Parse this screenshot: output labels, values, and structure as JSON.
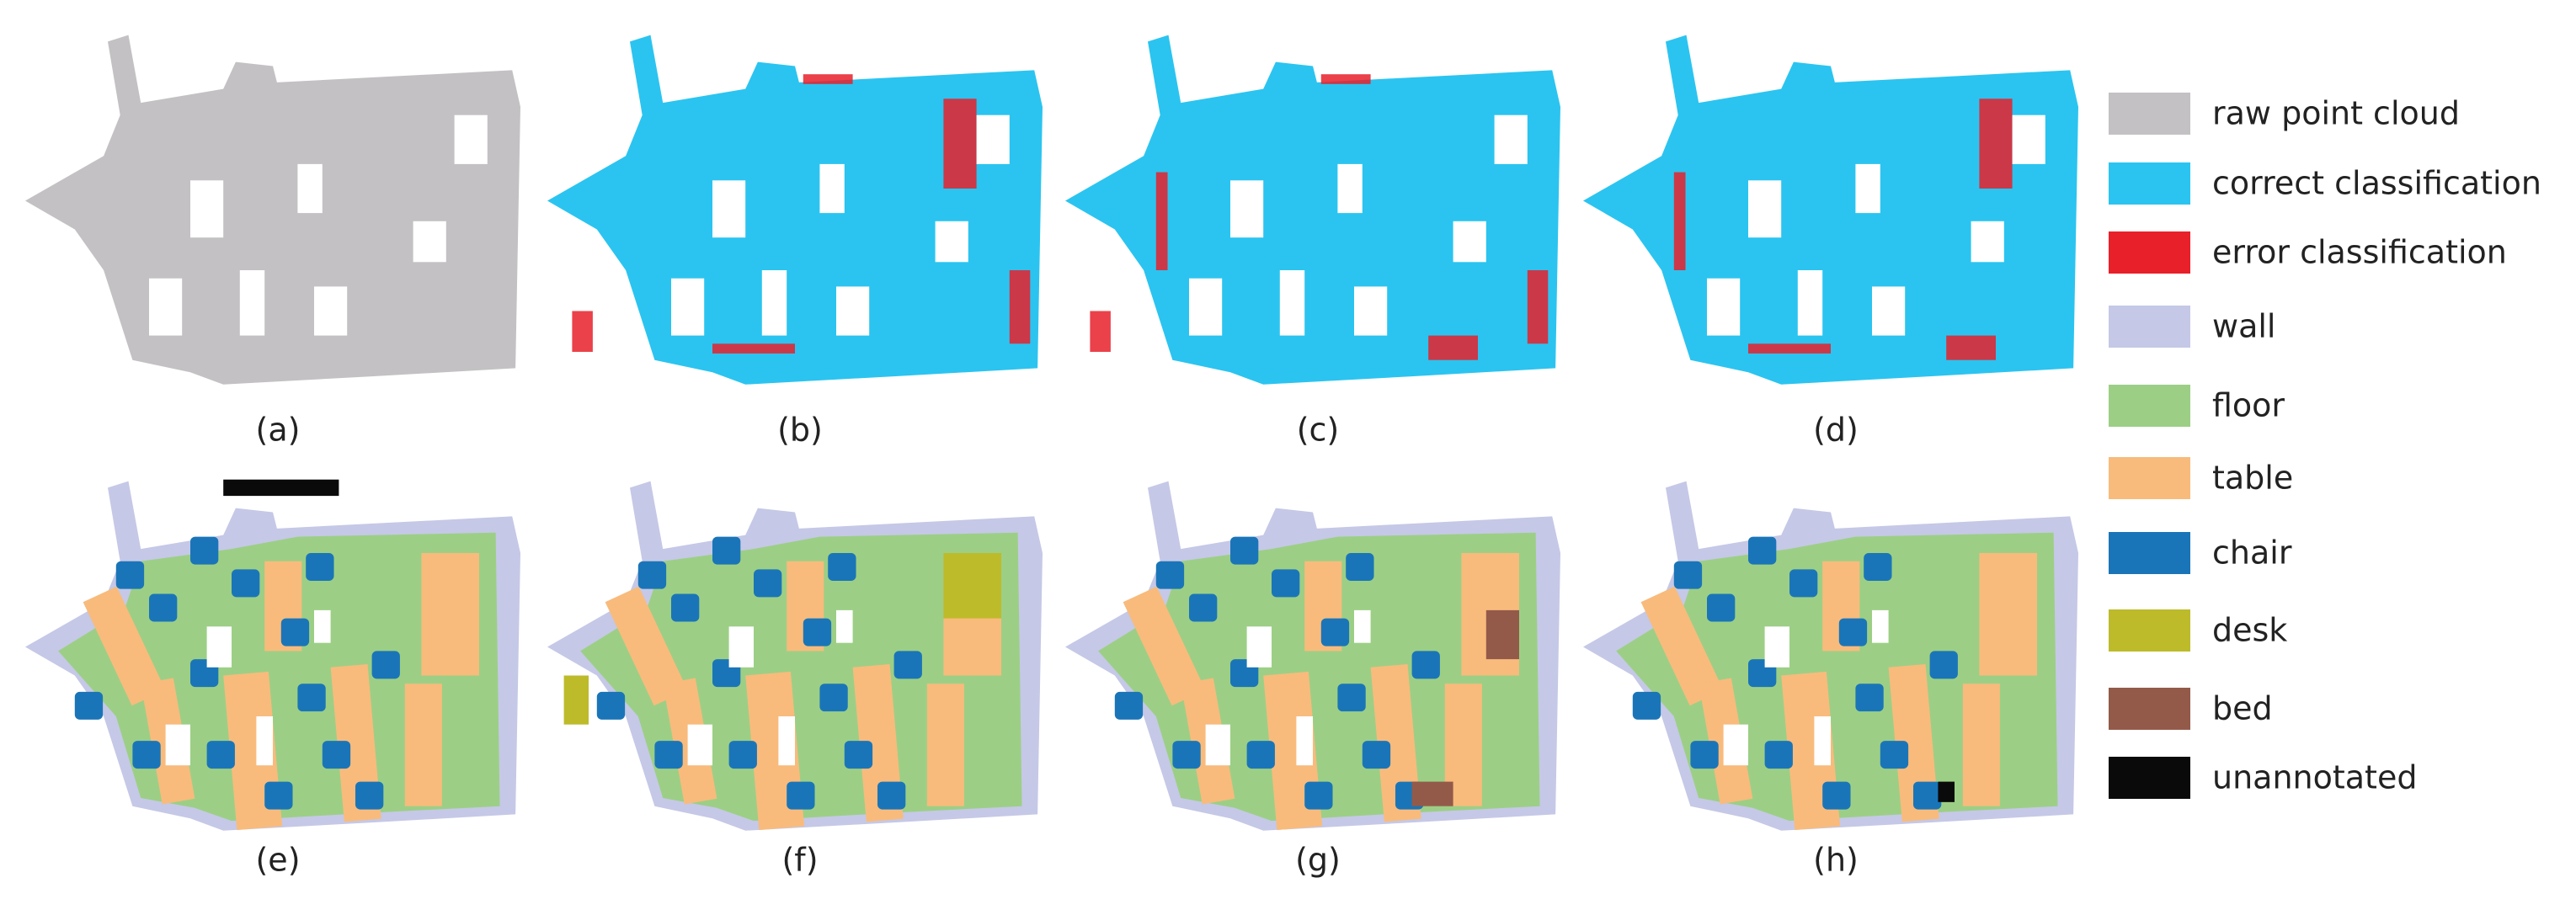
{
  "panels": [
    {
      "label": "(a)"
    },
    {
      "label": "(b)"
    },
    {
      "label": "(c)"
    },
    {
      "label": "(d)"
    },
    {
      "label": "(e)"
    },
    {
      "label": "(f)"
    },
    {
      "label": "(g)"
    },
    {
      "label": "(h)"
    }
  ],
  "legend": [
    {
      "label": "raw point cloud",
      "color": "#c3c1c3"
    },
    {
      "label": "correct classification",
      "color": "#2bc4f0"
    },
    {
      "label": "error classification",
      "color": "#e8202a"
    },
    {
      "label": "wall",
      "color": "#c5c8e6"
    },
    {
      "label": "floor",
      "color": "#9ccf85"
    },
    {
      "label": "table",
      "color": "#f8bb7c"
    },
    {
      "label": "chair",
      "color": "#1a75b8"
    },
    {
      "label": "desk",
      "color": "#bdbb2a"
    },
    {
      "label": "bed",
      "color": "#935a4a"
    },
    {
      "label": "unannotated",
      "color": "#0a0a0a"
    }
  ]
}
